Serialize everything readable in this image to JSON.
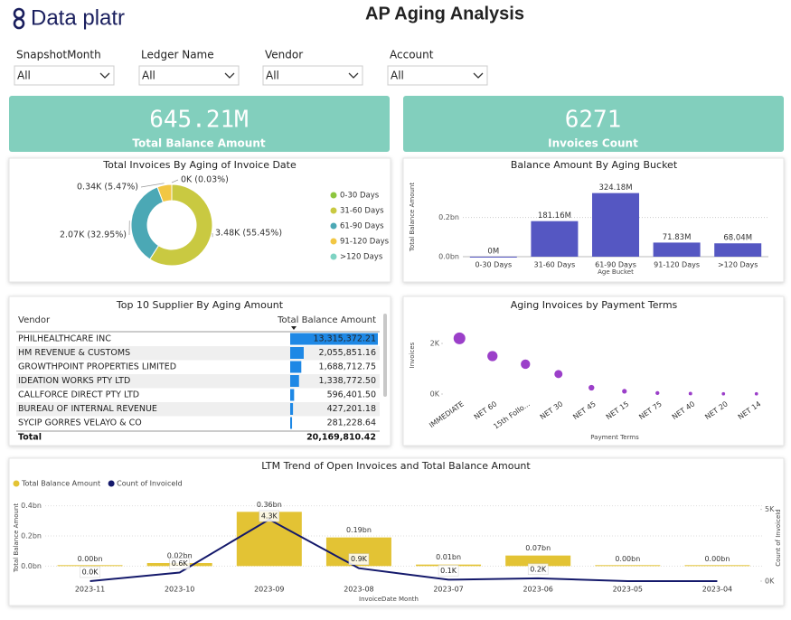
{
  "header": {
    "logo": "Data platr",
    "title": "AP Aging Analysis"
  },
  "filters": [
    {
      "label": "SnapshotMonth",
      "value": "All"
    },
    {
      "label": "Ledger Name",
      "value": "All"
    },
    {
      "label": "Vendor",
      "value": "All"
    },
    {
      "label": "Account",
      "value": "All"
    }
  ],
  "kpis": [
    {
      "value": "645.21M",
      "label": "Total Balance Amount"
    },
    {
      "value": "6271",
      "label": "Invoices Count"
    }
  ],
  "table": {
    "title": "Top 10 Supplier By Aging Amount",
    "columns": [
      "Vendor",
      "Total Balance Amount"
    ],
    "rows": [
      [
        "PHILHEALTHCARE INC",
        {
          "value": 13315372.21,
          "label": "13,315,372.21"
        }
      ],
      [
        "HM REVENUE & CUSTOMS",
        {
          "value": 2055851.16,
          "label": "2,055,851.16"
        }
      ],
      [
        "GROWTHPOINT PROPERTIES LIMITED",
        {
          "value": 1688712.75,
          "label": "1,688,712.75"
        }
      ],
      [
        "IDEATION WORKS PTY LTD",
        {
          "value": 1338772.5,
          "label": "1,338,772.50"
        }
      ],
      [
        "CALLFORCE DIRECT PTY LTD",
        {
          "value": 596401.5,
          "label": "596,401.50"
        }
      ],
      [
        "BUREAU OF INTERNAL REVENUE",
        {
          "value": 427201.18,
          "label": "427,201.18"
        }
      ],
      [
        "SYCIP GORRES VELAYO & CO",
        {
          "value": 281228.64,
          "label": "281,228.64"
        }
      ]
    ],
    "total": [
      "Total",
      "20,169,810.42"
    ],
    "bar_color": "#1e88e5"
  },
  "chart_data": [
    {
      "type": "donut",
      "title": "Total Invoices By Aging of Invoice Date",
      "categories": [
        "0-30 Days",
        "31-60 Days",
        "61-90 Days",
        "91-120 Days",
        ">120 Days"
      ],
      "values": [
        0,
        3.48,
        2.07,
        0.34,
        0
      ],
      "value_labels": [
        null,
        "3.48K (55.45%)",
        "2.07K (32.95%)",
        "0.34K (5.47%)",
        "0K (0.03%)"
      ],
      "colors": [
        "#8dc63f",
        "#c9c941",
        "#4ba8b5",
        "#f2c744",
        "#7ed3c3"
      ]
    },
    {
      "type": "bar",
      "title": "Balance Amount By Aging Bucket",
      "y_label": "Total Balance Amount",
      "x_label": "Age Bucket",
      "categories": [
        "0-30 Days",
        "31-60 Days",
        "61-90 Days",
        "91-120 Days",
        ">120 Days"
      ],
      "values": [
        0,
        0.18116,
        0.32418,
        0.07183,
        0.06804
      ],
      "value_labels": [
        "0M",
        "181.16M",
        "324.18M",
        "71.83M",
        "68.04M"
      ],
      "color": "#5557c2",
      "ylim": [
        0,
        0.41
      ],
      "yticks": [
        {
          "value": 0,
          "label": "0.0bn"
        },
        {
          "value": 0.2,
          "label": "0.2bn"
        }
      ],
      "grid": true
    },
    {
      "type": "scatter",
      "title": "Aging Invoices by Payment Terms",
      "y_label": "Invoices",
      "x_label": "Payment Terms",
      "categories": [
        "IMMEDIATE",
        "NET 60",
        "15th Follo...",
        "NET 30",
        "NET 45",
        "NET 15",
        "NET 75",
        "NET 40",
        "NET 20",
        "NET 14"
      ],
      "values": [
        2200,
        1500,
        1180,
        790,
        250,
        110,
        40,
        20,
        10,
        10
      ],
      "color": "#9b3fc9",
      "ylim": [
        0,
        2500
      ],
      "yticks": [
        {
          "value": 0,
          "label": "0K"
        },
        {
          "value": 2000,
          "label": "2K"
        }
      ]
    },
    {
      "type": "combo",
      "title": "LTM Trend of Open Invoices and Total Balance Amount",
      "y_label": "Total Balance Amount",
      "y2_label": "Count of InvoiceId",
      "x_label": "InvoiceDate Month",
      "categories": [
        "2023-11",
        "2023-10",
        "2023-09",
        "2023-08",
        "2023-07",
        "2023-06",
        "2023-05",
        "2023-04"
      ],
      "series": [
        {
          "name": "Total Balance Amount",
          "type": "bar",
          "color": "#e3c334",
          "values": [
            0,
            0.02,
            0.36,
            0.19,
            0.01,
            0.07,
            0,
            0
          ],
          "value_labels": [
            "0.00bn",
            "0.02bn",
            "0.36bn",
            "0.19bn",
            "0.01bn",
            "0.07bn",
            "0.00bn",
            "0.00bn"
          ]
        },
        {
          "name": "Count of InvoiceId",
          "type": "line",
          "axis": "y2",
          "color": "#14196b",
          "values": [
            0,
            600,
            4300,
            900,
            100,
            200,
            0,
            0
          ],
          "value_labels": [
            "0.0K",
            "0.6K",
            "4.3K",
            "0.9K",
            "0.1K",
            "0.2K",
            null,
            null
          ]
        }
      ],
      "ylim": [
        -0.1,
        0.5
      ],
      "yticks": [
        {
          "value": 0,
          "label": "0.0bn"
        },
        {
          "value": 0.2,
          "label": "0.2bn"
        },
        {
          "value": 0.4,
          "label": "0.4bn"
        }
      ],
      "y2lim": [
        0,
        6300
      ],
      "y2ticks": [
        {
          "value": 0,
          "label": "0K"
        },
        {
          "value": 5000,
          "label": "5K"
        }
      ],
      "grid": true
    }
  ]
}
